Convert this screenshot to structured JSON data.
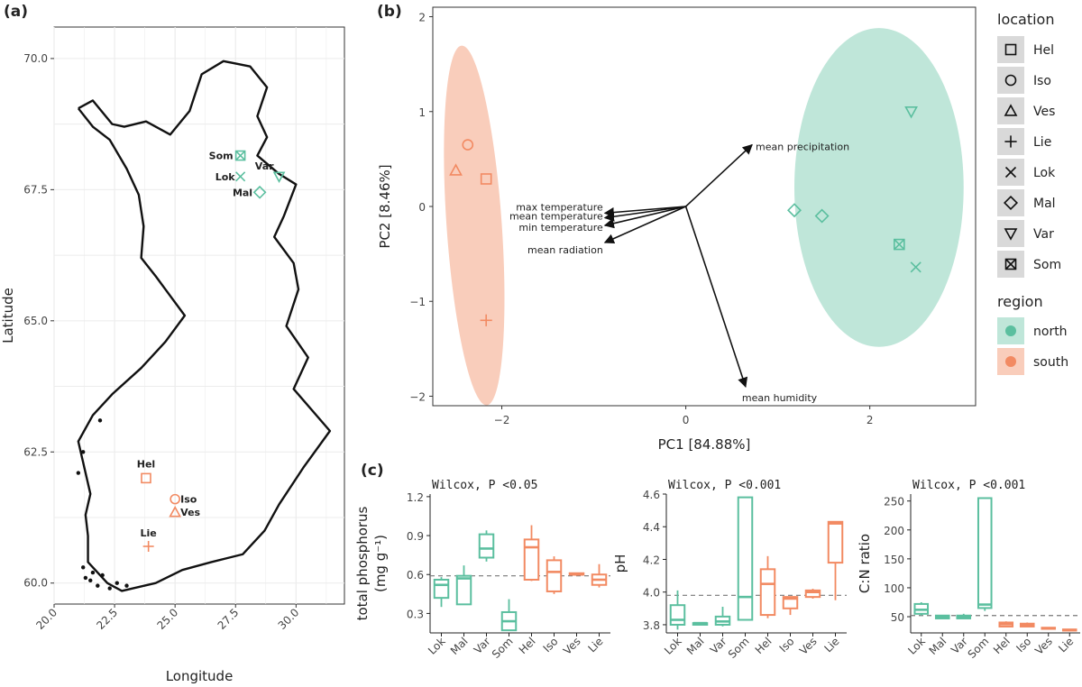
{
  "panels": {
    "a": "(a)",
    "b": "(b)",
    "c": "(c)"
  },
  "colors": {
    "north": "#5bbf9f",
    "south": "#f28a62",
    "north_fill": "#bfe6d9",
    "south_fill": "#f9cdbb"
  },
  "chart_data": [
    {
      "type": "scatter",
      "panel": "(a)",
      "xlabel": "Longitude",
      "ylabel": "Latitude",
      "xlim": [
        20.0,
        32.0
      ],
      "ylim": [
        59.6,
        70.6
      ],
      "xticks": [
        "20.0",
        "22.5",
        "25.0",
        "27.5",
        "30.0"
      ],
      "yticks": [
        "60.0",
        "62.5",
        "65.0",
        "67.5",
        "70.0"
      ],
      "points": [
        {
          "label": "Som",
          "lon": 27.7,
          "lat": 68.15,
          "shape": "boxx",
          "region": "north"
        },
        {
          "label": "Lok",
          "lon": 27.7,
          "lat": 67.75,
          "shape": "x",
          "region": "north"
        },
        {
          "label": "Var",
          "lon": 29.3,
          "lat": 67.75,
          "shape": "tridown",
          "region": "north"
        },
        {
          "label": "Mal",
          "lon": 28.5,
          "lat": 67.45,
          "shape": "diamond",
          "region": "north"
        },
        {
          "label": "Hel",
          "lon": 23.8,
          "lat": 62.0,
          "shape": "square",
          "region": "south"
        },
        {
          "label": "Iso",
          "lon": 25.0,
          "lat": 61.6,
          "shape": "circle",
          "region": "south"
        },
        {
          "label": "Ves",
          "lon": 25.0,
          "lat": 61.35,
          "shape": "triangle",
          "region": "south"
        },
        {
          "label": "Lie",
          "lon": 23.9,
          "lat": 60.7,
          "shape": "plus",
          "region": "south"
        }
      ]
    },
    {
      "type": "scatter",
      "panel": "(b)",
      "xlabel": "PC1 [84.88%]",
      "ylabel": "PC2 [8.46%]",
      "xlim": [
        -2.75,
        3.15
      ],
      "ylim": [
        -2.1,
        2.1
      ],
      "xticks": [
        -2,
        0,
        2
      ],
      "yticks": [
        -2,
        -1,
        0,
        1,
        2
      ],
      "points": [
        {
          "label": "Hel",
          "x": -2.17,
          "y": 0.29,
          "shape": "square",
          "region": "south"
        },
        {
          "label": "Iso",
          "x": -2.37,
          "y": 0.65,
          "shape": "circle",
          "region": "south"
        },
        {
          "label": "Ves",
          "x": -2.5,
          "y": 0.38,
          "shape": "triangle",
          "region": "south"
        },
        {
          "label": "Lie",
          "x": -2.17,
          "y": -1.2,
          "shape": "plus",
          "region": "south"
        },
        {
          "label": "Lok",
          "x": 2.5,
          "y": -0.64,
          "shape": "x",
          "region": "north"
        },
        {
          "label": "Mal",
          "x": 1.18,
          "y": -0.04,
          "shape": "diamond",
          "region": "north"
        },
        {
          "label": "Mal",
          "x": 1.48,
          "y": -0.1,
          "shape": "diamond",
          "region": "north"
        },
        {
          "label": "Var",
          "x": 2.45,
          "y": 1.0,
          "shape": "tridown",
          "region": "north"
        },
        {
          "label": "Som",
          "x": 2.32,
          "y": -0.4,
          "shape": "boxx",
          "region": "north"
        }
      ],
      "ellipses": [
        {
          "region": "south",
          "cx": -2.3,
          "cy": -0.2,
          "rx": 0.3,
          "ry": 1.9
        },
        {
          "region": "north",
          "cx": 2.1,
          "cy": 0.2,
          "rx": 0.92,
          "ry": 1.68
        }
      ],
      "loadings": [
        {
          "label": "mean precipitation",
          "x": 0.72,
          "y": 0.65
        },
        {
          "label": "mean humidity",
          "x": 0.65,
          "y": -1.9
        },
        {
          "label": "max temperature",
          "x": -0.88,
          "y": -0.07
        },
        {
          "label": "mean temperature",
          "x": -0.88,
          "y": -0.12
        },
        {
          "label": "min temperature",
          "x": -0.88,
          "y": -0.2
        },
        {
          "label": "mean radiation",
          "x": -0.88,
          "y": -0.38
        }
      ],
      "legend": {
        "location_title": "location",
        "locations": [
          {
            "label": "Hel",
            "shape": "square"
          },
          {
            "label": "Iso",
            "shape": "circle"
          },
          {
            "label": "Ves",
            "shape": "triangle"
          },
          {
            "label": "Lie",
            "shape": "plus"
          },
          {
            "label": "Lok",
            "shape": "x"
          },
          {
            "label": "Mal",
            "shape": "diamond"
          },
          {
            "label": "Var",
            "shape": "tridown"
          },
          {
            "label": "Som",
            "shape": "boxx"
          }
        ],
        "region_title": "region",
        "regions": [
          {
            "label": "north",
            "region": "north"
          },
          {
            "label": "south",
            "region": "south"
          }
        ]
      }
    },
    {
      "type": "box",
      "panel": "(c)",
      "title": "Wilcox, P <0.05",
      "ylabel_line1": "total phosphorus",
      "ylabel_line2": "(mg g⁻¹)",
      "ylim": [
        0.15,
        1.22
      ],
      "yticks": [
        "0.3",
        "0.6",
        "0.9",
        "1.2"
      ],
      "ytick_values": [
        0.3,
        0.6,
        0.9,
        1.2
      ],
      "ref_line": 0.59,
      "categories": [
        "Lok",
        "Mal",
        "Var",
        "Som",
        "Hel",
        "Iso",
        "Ves",
        "Lie"
      ],
      "regions": [
        "north",
        "north",
        "north",
        "north",
        "south",
        "south",
        "south",
        "south"
      ],
      "boxes": [
        {
          "min": 0.35,
          "q1": 0.42,
          "med": 0.52,
          "q3": 0.56,
          "max": 0.58
        },
        {
          "min": 0.37,
          "q1": 0.37,
          "med": 0.57,
          "q3": 0.59,
          "max": 0.67
        },
        {
          "min": 0.7,
          "q1": 0.73,
          "med": 0.8,
          "q3": 0.91,
          "max": 0.94
        },
        {
          "min": 0.17,
          "q1": 0.17,
          "med": 0.24,
          "q3": 0.31,
          "max": 0.41
        },
        {
          "min": 0.55,
          "q1": 0.56,
          "med": 0.81,
          "q3": 0.87,
          "max": 0.98
        },
        {
          "min": 0.45,
          "q1": 0.47,
          "med": 0.62,
          "q3": 0.71,
          "max": 0.74
        },
        {
          "min": 0.59,
          "q1": 0.6,
          "med": 0.6,
          "q3": 0.61,
          "max": 0.61
        },
        {
          "min": 0.5,
          "q1": 0.52,
          "med": 0.56,
          "q3": 0.6,
          "max": 0.68
        }
      ]
    },
    {
      "type": "box",
      "panel": "(c)",
      "title": "Wilcox, P <0.001",
      "ylabel_line1": "pH",
      "ylabel_line2": "",
      "ylim": [
        3.75,
        4.6
      ],
      "yticks": [
        "3.8",
        "4.0",
        "4.2",
        "4.4",
        "4.6"
      ],
      "ytick_values": [
        3.8,
        4.0,
        4.2,
        4.4,
        4.6
      ],
      "ref_line": 3.98,
      "categories": [
        "Lok",
        "Mal",
        "Var",
        "Som",
        "Hel",
        "Iso",
        "Ves",
        "Lie"
      ],
      "regions": [
        "north",
        "north",
        "north",
        "north",
        "south",
        "south",
        "south",
        "south"
      ],
      "boxes": [
        {
          "min": 3.77,
          "q1": 3.8,
          "med": 3.83,
          "q3": 3.92,
          "max": 4.01
        },
        {
          "min": 3.8,
          "q1": 3.8,
          "med": 3.81,
          "q3": 3.81,
          "max": 3.81
        },
        {
          "min": 3.79,
          "q1": 3.8,
          "med": 3.82,
          "q3": 3.85,
          "max": 3.91
        },
        {
          "min": 3.83,
          "q1": 3.83,
          "med": 3.97,
          "q3": 4.58,
          "max": 4.58
        },
        {
          "min": 3.84,
          "q1": 3.86,
          "med": 4.05,
          "q3": 4.14,
          "max": 4.22
        },
        {
          "min": 3.86,
          "q1": 3.9,
          "med": 3.96,
          "q3": 3.97,
          "max": 3.97
        },
        {
          "min": 3.96,
          "q1": 3.97,
          "med": 4.0,
          "q3": 4.01,
          "max": 4.02
        },
        {
          "min": 3.95,
          "q1": 4.18,
          "med": 4.42,
          "q3": 4.43,
          "max": 4.43
        }
      ]
    },
    {
      "type": "box",
      "panel": "(c)",
      "title": "Wilcox, P <0.001",
      "ylabel_line1": "C:N ratio",
      "ylabel_line2": "",
      "ylim": [
        22,
        262
      ],
      "yticks": [
        "50",
        "100",
        "150",
        "200",
        "250"
      ],
      "ytick_values": [
        50,
        100,
        150,
        200,
        250
      ],
      "ref_line": 52,
      "categories": [
        "Lok",
        "Mal",
        "Var",
        "Som",
        "Hel",
        "Iso",
        "Ves",
        "Lie"
      ],
      "regions": [
        "north",
        "north",
        "north",
        "north",
        "south",
        "south",
        "south",
        "south"
      ],
      "boxes": [
        {
          "min": 52,
          "q1": 55,
          "med": 62,
          "q3": 72,
          "max": 75
        },
        {
          "min": 46,
          "q1": 47,
          "med": 50,
          "q3": 52,
          "max": 53
        },
        {
          "min": 46,
          "q1": 47,
          "med": 50,
          "q3": 52,
          "max": 55
        },
        {
          "min": 60,
          "q1": 65,
          "med": 71,
          "q3": 255,
          "max": 255
        },
        {
          "min": 32,
          "q1": 33,
          "med": 37,
          "q3": 40,
          "max": 42
        },
        {
          "min": 32,
          "q1": 33,
          "med": 36,
          "q3": 38,
          "max": 40
        },
        {
          "min": 29,
          "q1": 29,
          "med": 30,
          "q3": 31,
          "max": 31
        },
        {
          "min": 26,
          "q1": 26,
          "med": 27,
          "q3": 28,
          "max": 29
        }
      ]
    }
  ]
}
